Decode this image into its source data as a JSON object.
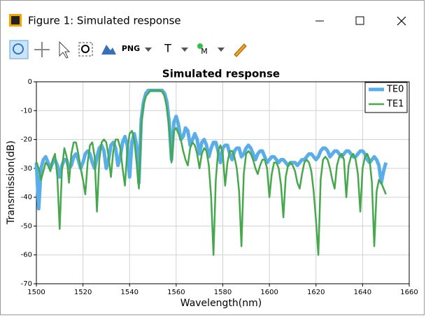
{
  "window": {
    "title": "Figure 1: Simulated response"
  },
  "toolbar": {
    "labels": [
      "PNG",
      "T",
      "M"
    ]
  },
  "chart_data": {
    "type": "line",
    "title": "Simulated response",
    "xlabel": "Wavelength(nm)",
    "ylabel": "Transmission(dB)",
    "x": [
      1500,
      1501,
      1502,
      1503,
      1504,
      1505,
      1506,
      1507,
      1508,
      1509,
      1510,
      1511,
      1512,
      1513,
      1514,
      1515,
      1516,
      1517,
      1518,
      1519,
      1520,
      1521,
      1522,
      1523,
      1524,
      1525,
      1526,
      1527,
      1528,
      1529,
      1530,
      1531,
      1532,
      1533,
      1534,
      1535,
      1536,
      1537,
      1538,
      1539,
      1540,
      1541,
      1542,
      1543,
      1544,
      1545,
      1546,
      1547,
      1548,
      1549,
      1550,
      1551,
      1552,
      1553,
      1554,
      1555,
      1556,
      1557,
      1558,
      1559,
      1560,
      1561,
      1562,
      1563,
      1564,
      1565,
      1566,
      1567,
      1568,
      1569,
      1570,
      1571,
      1572,
      1573,
      1574,
      1575,
      1576,
      1577,
      1578,
      1579,
      1580,
      1581,
      1582,
      1583,
      1584,
      1585,
      1586,
      1587,
      1588,
      1589,
      1590,
      1591,
      1592,
      1593,
      1594,
      1595,
      1596,
      1597,
      1598,
      1599,
      1600,
      1601,
      1602,
      1603,
      1604,
      1605,
      1606,
      1607,
      1608,
      1609,
      1610,
      1611,
      1612,
      1613,
      1614,
      1615,
      1616,
      1617,
      1618,
      1619,
      1620,
      1621,
      1622,
      1623,
      1624,
      1625,
      1626,
      1627,
      1628,
      1629,
      1630,
      1631,
      1632,
      1633,
      1634,
      1635,
      1636,
      1637,
      1638,
      1639,
      1640,
      1641,
      1642,
      1643,
      1644,
      1645,
      1646,
      1647,
      1648,
      1649,
      1650
    ],
    "series": [
      {
        "name": "TE0",
        "color": "#5aaee8",
        "width": 5,
        "values": [
          -28,
          -44,
          -30,
          -27,
          -26,
          -28,
          -30,
          -28,
          -27,
          -29,
          -33,
          -29,
          -27,
          -27,
          -30,
          -29,
          -26,
          -25,
          -27,
          -30,
          -28,
          -25,
          -24,
          -25,
          -28,
          -30,
          -26,
          -23,
          -22,
          -24,
          -30,
          -27,
          -22,
          -21,
          -23,
          -29,
          -26,
          -21,
          -19,
          -22,
          -33,
          -21,
          -18,
          -22,
          -35,
          -13,
          -7,
          -4,
          -3,
          -3,
          -3,
          -3,
          -3,
          -3,
          -3,
          -4,
          -7,
          -14,
          -27,
          -14,
          -12,
          -15,
          -20,
          -19,
          -16,
          -17,
          -22,
          -20,
          -18,
          -20,
          -25,
          -21,
          -20,
          -22,
          -26,
          -23,
          -21,
          -21,
          -24,
          -28,
          -23,
          -22,
          -22,
          -25,
          -27,
          -24,
          -23,
          -23,
          -26,
          -25,
          -23,
          -22,
          -23,
          -25,
          -27,
          -25,
          -24,
          -24,
          -26,
          -28,
          -27,
          -26,
          -26,
          -27,
          -28,
          -27,
          -27,
          -28,
          -29,
          -28,
          -28,
          -28,
          -29,
          -28,
          -27,
          -27,
          -26,
          -25,
          -25,
          -26,
          -27,
          -26,
          -24,
          -23,
          -23,
          -24,
          -26,
          -25,
          -24,
          -24,
          -25,
          -26,
          -25,
          -24,
          -24,
          -25,
          -26,
          -26,
          -25,
          -24,
          -24,
          -25,
          -27,
          -28,
          -27,
          -26,
          -27,
          -29,
          -35,
          -31,
          -28
        ]
      },
      {
        "name": "TE1",
        "color": "#45a84c",
        "width": 2.5,
        "values": [
          -28,
          -30,
          -34,
          -31,
          -28,
          -29,
          -31,
          -27,
          -25,
          -33,
          -51,
          -30,
          -23,
          -26,
          -35,
          -25,
          -21,
          -21,
          -25,
          -30,
          -34,
          -39,
          -28,
          -22,
          -21,
          -26,
          -45,
          -27,
          -21,
          -20,
          -21,
          -26,
          -33,
          -24,
          -20,
          -20,
          -23,
          -30,
          -36,
          -24,
          -18,
          -17,
          -20,
          -28,
          -37,
          -15,
          -8,
          -5,
          -4,
          -3,
          -3,
          -3,
          -3,
          -3,
          -3.5,
          -5,
          -9,
          -16,
          -28,
          -17,
          -16,
          -18,
          -20,
          -24,
          -27,
          -29,
          -23,
          -21,
          -22,
          -25,
          -30,
          -25,
          -23,
          -24,
          -29,
          -40,
          -60,
          -34,
          -24,
          -22,
          -25,
          -36,
          -28,
          -24,
          -24,
          -26,
          -30,
          -38,
          -57,
          -32,
          -25,
          -24,
          -25,
          -27,
          -30,
          -32,
          -29,
          -27,
          -27,
          -30,
          -40,
          -32,
          -28,
          -28,
          -30,
          -36,
          -47,
          -33,
          -29,
          -28,
          -29,
          -31,
          -35,
          -37,
          -32,
          -28,
          -27,
          -28,
          -31,
          -38,
          -48,
          -60,
          -34,
          -27,
          -26,
          -27,
          -30,
          -34,
          -37,
          -29,
          -26,
          -25,
          -27,
          -40,
          -29,
          -26,
          -25,
          -27,
          -32,
          -45,
          -30,
          -26,
          -25,
          -27,
          -35,
          -57,
          -38,
          -34,
          -35,
          -37,
          -39
        ]
      }
    ],
    "xlim": [
      1500,
      1660
    ],
    "xticks": [
      1500,
      1520,
      1540,
      1560,
      1580,
      1600,
      1620,
      1640,
      1660
    ],
    "ylim": [
      -70,
      0
    ],
    "yticks": [
      0,
      -10,
      -20,
      -30,
      -40,
      -50,
      -60,
      -70
    ],
    "grid": true,
    "legend": "upper-right"
  }
}
